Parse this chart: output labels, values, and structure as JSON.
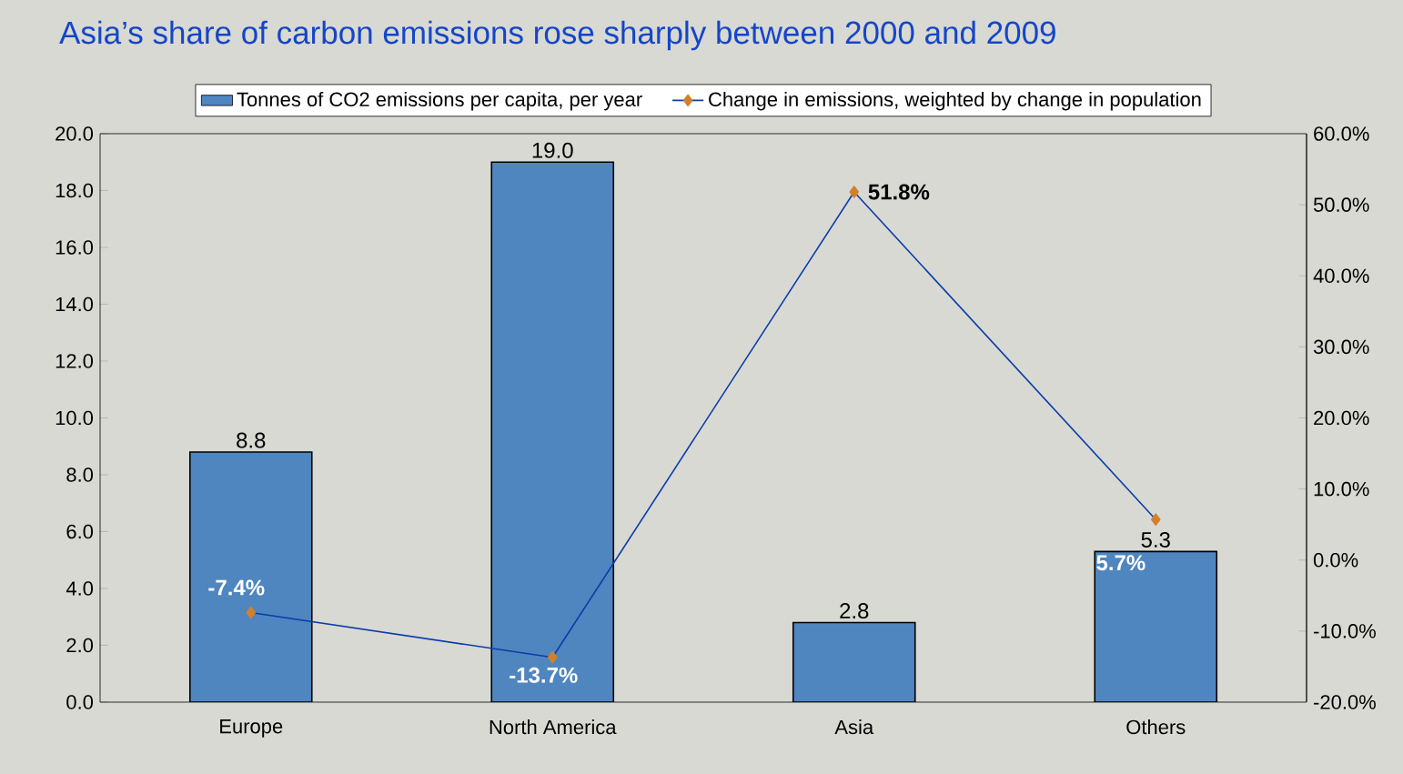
{
  "chart_data": {
    "type": "bar",
    "title": "Asia’s share of carbon emissions rose sharply between 2000 and 2009",
    "categories": [
      "Europe",
      "North America",
      "Asia",
      "Others"
    ],
    "series": [
      {
        "name": "Tonnes of CO2 emissions per capita, per year",
        "type": "bar",
        "color": "#4f86c0",
        "values": [
          8.8,
          19.0,
          2.8,
          5.3
        ],
        "value_labels": [
          "8.8",
          "19.0",
          "2.8",
          "5.3"
        ]
      },
      {
        "name": "Change in emissions, weighted by change in population",
        "type": "line",
        "axis": "y2",
        "color": "#0a3ea8",
        "values": [
          -7.4,
          -13.7,
          51.8,
          5.7
        ],
        "value_labels": [
          "-7.4%",
          "-13.7%",
          "51.8%",
          "5.7%"
        ]
      }
    ],
    "ylim": [
      0,
      20
    ],
    "yticks": [
      {
        "value": 0,
        "label": "0.0"
      },
      {
        "value": 2,
        "label": "2.0"
      },
      {
        "value": 4,
        "label": "4.0"
      },
      {
        "value": 6,
        "label": "6.0"
      },
      {
        "value": 8,
        "label": "8.0"
      },
      {
        "value": 10,
        "label": "10.0"
      },
      {
        "value": 12,
        "label": "12.0"
      },
      {
        "value": 14,
        "label": "14.0"
      },
      {
        "value": 16,
        "label": "16.0"
      },
      {
        "value": 18,
        "label": "18.0"
      },
      {
        "value": 20,
        "label": "20.0"
      }
    ],
    "y2lim": [
      -20,
      60
    ],
    "y2ticks": [
      {
        "value": -20,
        "label": "-20.0%"
      },
      {
        "value": -10,
        "label": "-10.0%"
      },
      {
        "value": 0,
        "label": "0.0%"
      },
      {
        "value": 10,
        "label": "10.0%"
      },
      {
        "value": 20,
        "label": "20.0%"
      },
      {
        "value": 30,
        "label": "30.0%"
      },
      {
        "value": 40,
        "label": "40.0%"
      },
      {
        "value": 50,
        "label": "50.0%"
      },
      {
        "value": 60,
        "label": "60.0%"
      }
    ],
    "legend": "top",
    "marker": "diamond",
    "line_style": "solid",
    "grid": false
  }
}
